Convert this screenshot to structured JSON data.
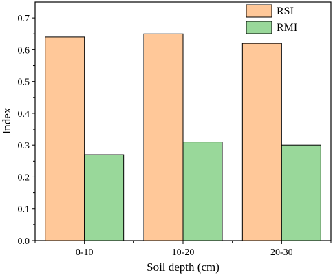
{
  "chart_data": {
    "type": "bar",
    "title": "",
    "xlabel": "Soil depth (cm)",
    "ylabel": "Index",
    "categories": [
      "0-10",
      "10-20",
      "20-30"
    ],
    "series": [
      {
        "name": "RSI",
        "values": [
          0.64,
          0.65,
          0.62
        ],
        "color": "#FFC899",
        "stroke": "#000000"
      },
      {
        "name": "RMI",
        "values": [
          0.27,
          0.31,
          0.3
        ],
        "color": "#99D89A",
        "stroke": "#000000"
      }
    ],
    "ylim": [
      0,
      0.75
    ],
    "yticks": [
      "0.0",
      "0.1",
      "0.2",
      "0.3",
      "0.4",
      "0.5",
      "0.6",
      "0.7"
    ],
    "grid": false,
    "legend_position": "top-right"
  }
}
